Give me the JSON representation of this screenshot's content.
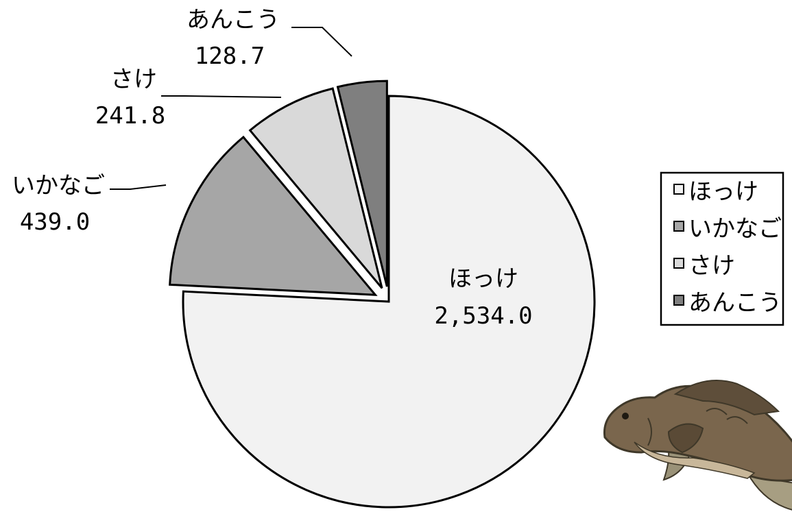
{
  "chart_data": {
    "type": "pie",
    "categories": [
      "ほっけ",
      "いかなご",
      "さけ",
      "あんこう"
    ],
    "values": [
      2534.0,
      439.0,
      241.8,
      128.7
    ],
    "value_labels": [
      "2,534.0",
      "439.0",
      "241.8",
      "128.7"
    ],
    "colors": [
      "#f2f2f2",
      "#a6a6a6",
      "#d9d9d9",
      "#7f7f7f"
    ],
    "exploded": [
      false,
      true,
      true,
      true
    ],
    "legend": {
      "position": "right",
      "entries": [
        "ほっけ",
        "いかなご",
        "さけ",
        "あんこう"
      ]
    },
    "decoration": "fish-illustration"
  }
}
